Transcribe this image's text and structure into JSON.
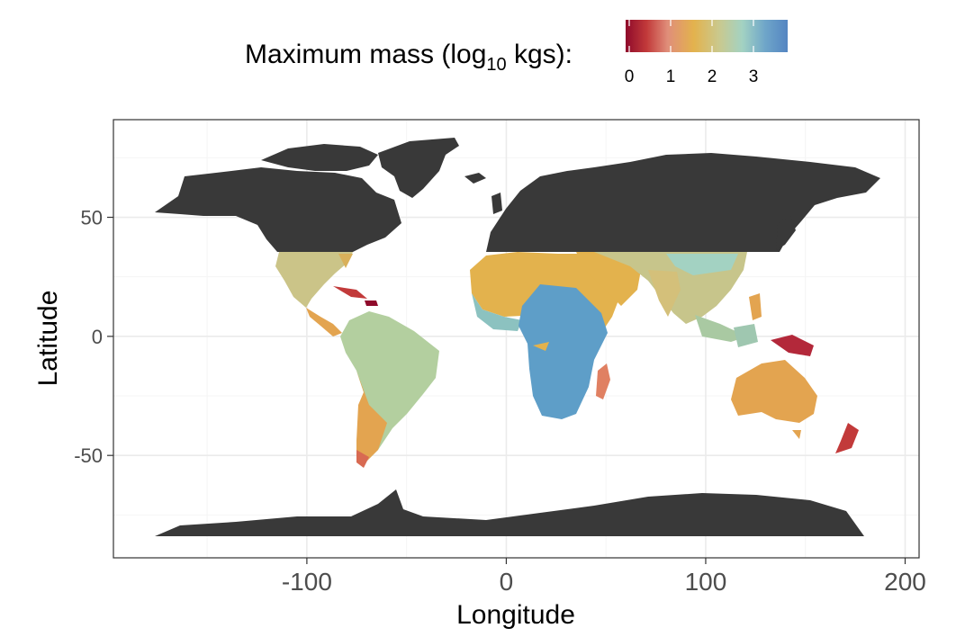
{
  "legend": {
    "title_main": "Maximum mass (log",
    "title_sub": "10",
    "title_end": " kgs):",
    "ticks": [
      "0",
      "1",
      "2",
      "3"
    ],
    "gradient_colors": [
      "#8f0a2b",
      "#c23a3a",
      "#e08e7a",
      "#e3b24d",
      "#c9c98f",
      "#a3d2c2",
      "#6fa6c9",
      "#5485c2"
    ]
  },
  "axes": {
    "x_label": "Longitude",
    "y_label": "Latitude",
    "x_ticks": [
      {
        "value": -100,
        "label": "-100"
      },
      {
        "value": 0,
        "label": "0"
      },
      {
        "value": 100,
        "label": "100"
      },
      {
        "value": 200,
        "label": "200"
      }
    ],
    "y_ticks": [
      {
        "value": 50,
        "label": "50"
      },
      {
        "value": 0,
        "label": "0"
      },
      {
        "value": -50,
        "label": "-50"
      }
    ],
    "x_range": [
      -197,
      207
    ],
    "y_range": [
      -93,
      91
    ],
    "grid": true
  },
  "colors": {
    "land_masked": "#393939",
    "panel_border": "#333333",
    "grid_major": "#ebebeb",
    "grid_minor": "#f5f5f5"
  }
}
